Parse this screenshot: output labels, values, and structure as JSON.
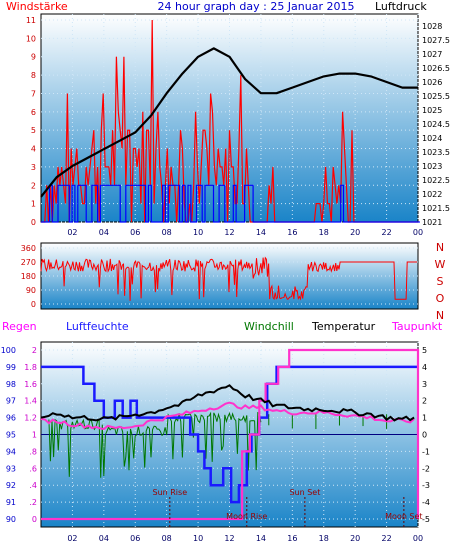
{
  "header": {
    "left_label": "Windstärke",
    "title": "24 hour graph day : 25 Januar 2015",
    "right_label": "Luftdruck"
  },
  "colors": {
    "bg_top": "#ffffff",
    "bg_bottom": "#1a84c8",
    "wind_red": "#ff0000",
    "gust_blue": "#0000ff",
    "pressure": "#000000",
    "axis_red": "#cc0000",
    "humidity_blue": "#1a1aff",
    "windchill_green": "#007700",
    "dewpoint_magenta": "#ff33cc",
    "temp_black": "#000000",
    "astro_label": "#990000"
  },
  "chart_data": [
    {
      "type": "line",
      "name": "wind-pressure",
      "x_ticks": [
        "02",
        "04",
        "06",
        "08",
        "10",
        "12",
        "14",
        "16",
        "18",
        "20",
        "22",
        "00"
      ],
      "xlim": [
        0,
        24
      ],
      "y_left": {
        "ticks": [
          "0",
          "1",
          "2",
          "3",
          "4",
          "5",
          "6",
          "7",
          "8",
          "9",
          "10",
          "11"
        ],
        "ylim": [
          0,
          11
        ]
      },
      "y_right": {
        "ticks": [
          "1028",
          "1027.5",
          "1027",
          "1026.5",
          "1026",
          "1025.5",
          "1025",
          "1024.5",
          "1024",
          "1023.5",
          "1023",
          "1022.5",
          "1022",
          "1021.5",
          "1021"
        ],
        "ylim": [
          1021,
          1028
        ]
      },
      "pressure": {
        "x": [
          0,
          1,
          2,
          3,
          4,
          5,
          6,
          7,
          8,
          9,
          10,
          11,
          12,
          13,
          14,
          15,
          16,
          17,
          18,
          19,
          20,
          21,
          22,
          23,
          24
        ],
        "y": [
          1021.9,
          1022.6,
          1023.0,
          1023.3,
          1023.6,
          1023.9,
          1024.2,
          1024.8,
          1025.6,
          1026.3,
          1026.9,
          1027.2,
          1026.9,
          1026.1,
          1025.6,
          1025.6,
          1025.8,
          1026.0,
          1026.2,
          1026.3,
          1026.3,
          1026.2,
          1026.0,
          1025.8,
          1025.8
        ]
      },
      "wind_max": 11,
      "gust_level": 2
    },
    {
      "type": "line",
      "name": "wind-direction",
      "y_ticks": [
        "360",
        "270",
        "180",
        "90",
        "0"
      ],
      "ylim": [
        0,
        360
      ],
      "compass": [
        "N",
        "W",
        "S",
        "O",
        "N"
      ]
    },
    {
      "type": "line",
      "name": "climate",
      "labels": {
        "regen": "Regen",
        "luftfeuchte": "Luftfeuchte",
        "windchill": "Windchill",
        "temperatur": "Temperatur",
        "taupunkt": "Taupunkt"
      },
      "x_ticks": [
        "02",
        "04",
        "06",
        "08",
        "10",
        "12",
        "14",
        "16",
        "18",
        "20",
        "22",
        "00"
      ],
      "y_humidity": {
        "ticks": [
          "100",
          "99",
          "98",
          "97",
          "96",
          "95",
          "94",
          "93",
          "92",
          "91",
          "90"
        ],
        "ylim": [
          90,
          100
        ]
      },
      "y_rain": {
        "ticks": [
          "2",
          "1.8",
          "1.6",
          "1.4",
          "1.2",
          "1",
          ".8",
          ".6",
          ".4",
          ".2",
          "0"
        ],
        "ylim": [
          0,
          2
        ]
      },
      "y_temp": {
        "ticks": [
          "5",
          "4",
          "3",
          "2",
          "1",
          "0",
          "-1",
          "-2",
          "-3",
          "-4",
          "-5"
        ],
        "ylim": [
          -5,
          5
        ]
      },
      "temperature": {
        "x": [
          0,
          1,
          2,
          3,
          4,
          5,
          6,
          7,
          8,
          9,
          10,
          11,
          12,
          13,
          14,
          15,
          16,
          17,
          18,
          19,
          20,
          21,
          22,
          23,
          24
        ],
        "y": [
          1.0,
          1.3,
          1.0,
          1.0,
          0.9,
          1.0,
          1.2,
          1.3,
          1.6,
          1.8,
          2.3,
          2.6,
          2.9,
          2.3,
          2.0,
          1.7,
          1.6,
          1.5,
          1.5,
          1.4,
          1.3,
          1.2,
          1.0,
          0.9,
          1.0
        ]
      },
      "dewpoint": {
        "x": [
          0,
          1,
          2,
          3,
          4,
          5,
          6,
          7,
          8,
          9,
          10,
          11,
          12,
          13,
          14,
          15,
          16,
          17,
          18,
          19,
          20,
          21,
          22,
          23,
          24
        ],
        "y": [
          0.8,
          0.8,
          0.6,
          0.5,
          0.4,
          0.4,
          0.5,
          0.8,
          1.0,
          1.2,
          1.4,
          1.6,
          1.8,
          1.6,
          1.6,
          1.4,
          1.3,
          1.3,
          1.3,
          1.2,
          1.1,
          1.0,
          0.8,
          0.8,
          0.8
        ]
      },
      "windchill_segments": 36,
      "humidity": {
        "x": [
          0,
          2.7,
          2.7,
          3.4,
          3.4,
          4.0,
          4.0,
          4.7,
          4.7,
          5.2,
          5.2,
          5.7,
          5.7,
          6.1,
          6.1,
          6.3,
          6.3,
          9.5,
          9.5,
          10.0,
          10.0,
          10.4,
          10.4,
          10.8,
          10.8,
          11.6,
          11.6,
          12.1,
          12.1,
          12.6,
          12.6,
          13.1,
          13.1,
          13.4,
          13.4,
          13.9,
          13.9,
          14.4,
          14.4,
          15.0,
          15.0,
          15.6,
          15.6,
          24
        ],
        "y": [
          99,
          99,
          98,
          98,
          97,
          97,
          96,
          96,
          97,
          97,
          96,
          96,
          97,
          97,
          96,
          96,
          96,
          96,
          95,
          95,
          94,
          94,
          93,
          93,
          92,
          92,
          93,
          93,
          91,
          91,
          92,
          92,
          94,
          94,
          95,
          95,
          96,
          96,
          98,
          98,
          99,
          99,
          99,
          99
        ]
      },
      "rain": {
        "x": [
          0,
          12.8,
          12.8,
          13.3,
          13.3,
          13.9,
          13.9,
          14.3,
          14.3,
          15.1,
          15.1,
          15.8,
          15.8,
          24
        ],
        "y": [
          0,
          0,
          0.8,
          0.8,
          1.0,
          1.0,
          1.4,
          1.4,
          1.6,
          1.6,
          1.8,
          1.8,
          2.0,
          2.0
        ]
      },
      "astro": {
        "sun_rise": {
          "label": "Sun Rise",
          "x": 8.2
        },
        "sun_set": {
          "label": "Sun Set",
          "x": 16.8
        },
        "moon_rise": {
          "label": "Moon Rise",
          "x": 13.1
        },
        "moon_set": {
          "label": "Moon Set",
          "x": 23.1
        }
      }
    }
  ]
}
